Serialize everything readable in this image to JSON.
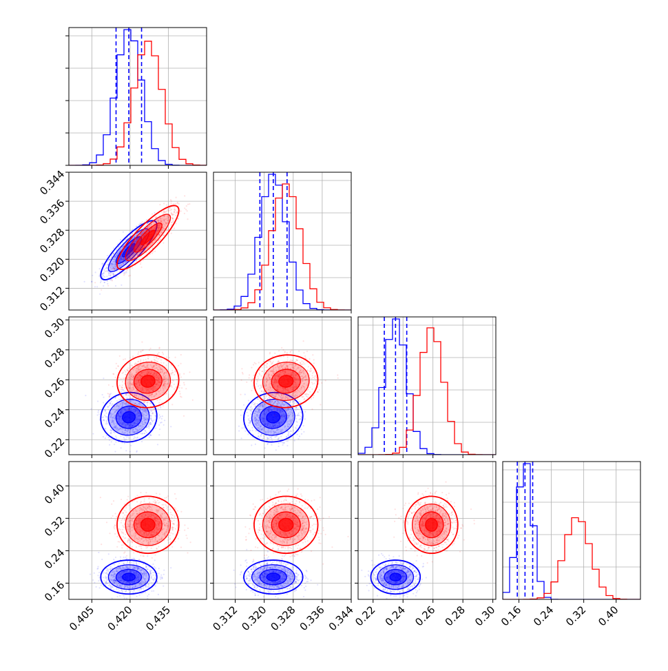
{
  "chart_data": {
    "type": "corner",
    "parameters": [
      "",
      "",
      "",
      ""
    ],
    "ranges": [
      [
        0.396,
        0.45
      ],
      [
        0.306,
        0.344
      ],
      [
        0.21,
        0.302
      ],
      [
        0.12,
        0.46
      ]
    ],
    "ticks": [
      [
        0.405,
        0.42,
        0.435
      ],
      [
        0.312,
        0.32,
        0.328,
        0.336,
        0.344
      ],
      [
        0.22,
        0.24,
        0.26,
        0.28,
        0.3
      ],
      [
        0.16,
        0.24,
        0.32,
        0.4
      ]
    ],
    "tick_labels": [
      [
        "0.405",
        "0.420",
        "0.435"
      ],
      [
        "0.312",
        "0.320",
        "0.328",
        "0.336",
        "0.344"
      ],
      [
        "0.22",
        "0.24",
        "0.26",
        "0.28",
        "0.30"
      ],
      [
        "0.16",
        "0.24",
        "0.32",
        "0.40"
      ]
    ],
    "grid": true,
    "series": [
      {
        "color": "#0000ff",
        "mean": [
          0.4195,
          0.3225,
          0.235,
          0.175
        ],
        "std": [
          0.005,
          0.0037,
          0.0075,
          0.019
        ],
        "correlations": [
          [
            0,
            1,
            0.85
          ],
          [
            0,
            2,
            0.05
          ],
          [
            0,
            3,
            0.0
          ],
          [
            1,
            2,
            0.05
          ],
          [
            1,
            3,
            0.0
          ],
          [
            2,
            3,
            0.0
          ]
        ],
        "quantiles": [
          [
            0.4145,
            0.4195,
            0.4245
          ],
          [
            0.3188,
            0.3225,
            0.3263
          ],
          [
            0.2275,
            0.235,
            0.2425
          ],
          [
            0.156,
            0.175,
            0.194
          ]
        ]
      },
      {
        "color": "#ff0000",
        "mean": [
          0.427,
          0.326,
          0.259,
          0.304
        ],
        "std": [
          0.0055,
          0.004,
          0.008,
          0.032
        ],
        "correlations": [
          [
            0,
            1,
            0.85
          ],
          [
            0,
            2,
            0.05
          ],
          [
            0,
            3,
            0.0
          ],
          [
            1,
            2,
            0.05
          ],
          [
            1,
            3,
            0.0
          ],
          [
            2,
            3,
            0.0
          ]
        ],
        "quantiles": []
      }
    ]
  }
}
